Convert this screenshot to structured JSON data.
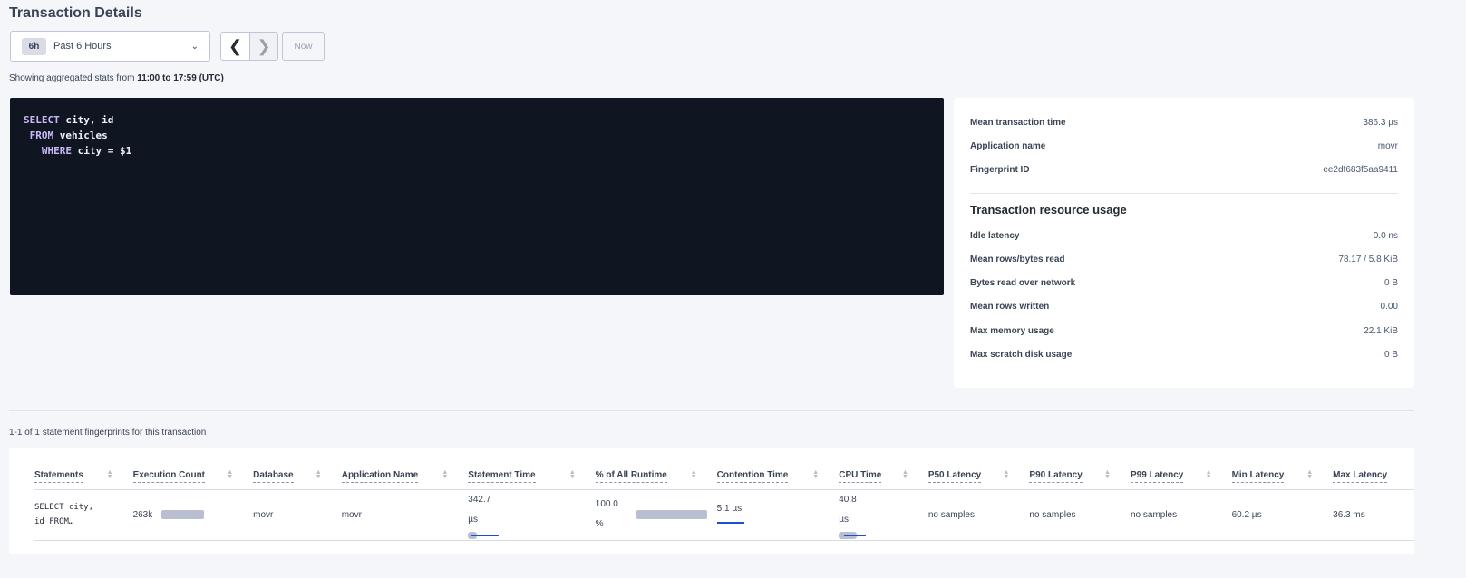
{
  "header": {
    "title": "Transaction Details"
  },
  "time_selector": {
    "badge": "6h",
    "label": "Past 6 Hours",
    "prev_icon": "chevron-left",
    "next_icon": "chevron-right",
    "now_label": "Now"
  },
  "range": {
    "prefix": "Showing aggregated stats from ",
    "value": "11:00 to 17:59 (UTC)"
  },
  "sql": {
    "lines": [
      {
        "kw": "SELECT",
        "rest": " city, id",
        "indent": ""
      },
      {
        "kw": "FROM",
        "rest": " vehicles",
        "indent": " "
      },
      {
        "kw": "WHERE",
        "rest": " city = $1",
        "indent": "   "
      }
    ]
  },
  "summary": [
    {
      "label": "Mean transaction time",
      "value": "386.3 µs"
    },
    {
      "label": "Application name",
      "value": "movr"
    },
    {
      "label": "Fingerprint ID",
      "value": "ee2df683f5aa9411"
    }
  ],
  "resource_usage": {
    "title": "Transaction resource usage",
    "items": [
      {
        "label": "Idle latency",
        "value": "0.0 ns"
      },
      {
        "label": "Mean rows/bytes read",
        "value": "78.17 / 5.8 KiB"
      },
      {
        "label": "Bytes read over network",
        "value": "0 B"
      },
      {
        "label": "Mean rows written",
        "value": "0.00"
      },
      {
        "label": "Max memory usage",
        "value": "22.1 KiB"
      },
      {
        "label": "Max scratch disk usage",
        "value": "0 B"
      }
    ]
  },
  "table": {
    "count_text": "1-1 of 1 statement fingerprints for this transaction",
    "columns": [
      "Statements",
      "Execution Count",
      "Database",
      "Application Name",
      "Statement Time",
      "% of All Runtime",
      "Contention Time",
      "CPU Time",
      "P50 Latency",
      "P90 Latency",
      "P99 Latency",
      "Min Latency",
      "Max Latency"
    ],
    "rows": [
      {
        "statement_line1": "SELECT city,",
        "statement_line2": "id FROM…",
        "execution_count": "263k",
        "database": "movr",
        "application_name": "movr",
        "statement_time_num": "342.7",
        "statement_time_unit": "µs",
        "pct_runtime_num": "100.0",
        "pct_runtime_unit": "%",
        "contention_time": "5.1 µs",
        "cpu_time_num": "40.8",
        "cpu_time_unit": "µs",
        "p50": "no samples",
        "p90": "no samples",
        "p99": "no samples",
        "min_latency": "60.2 µs",
        "max_latency": "36.3 ms",
        "bars": {
          "execution_count": 1.0,
          "statement_time_mean": 0.25,
          "statement_time_dev": 0.75,
          "pct_runtime": 1.0,
          "contention_time_dev": 0.75,
          "cpu_time_mean": 0.5,
          "cpu_time_dev": 0.6
        }
      }
    ]
  },
  "colors": {
    "bar_gray": "#b9bfd1",
    "bar_blue": "#1d4ed8",
    "sql_bg": "#0f1521",
    "keyword": "#c9b8f5"
  }
}
